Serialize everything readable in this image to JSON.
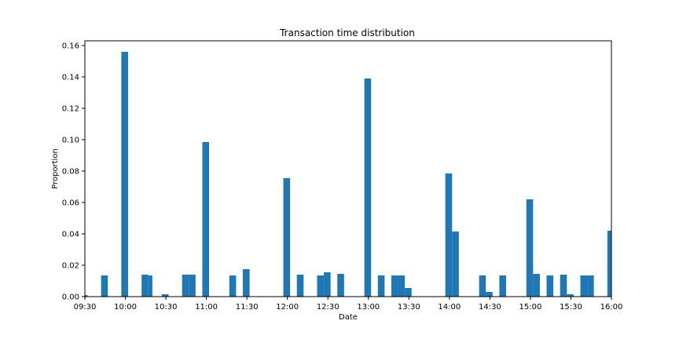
{
  "chart_data": {
    "type": "bar",
    "title": "Transaction time distribution",
    "xlabel": "Date",
    "ylabel": "Proportion",
    "x_range": [
      "09:30",
      "16:00"
    ],
    "xlim": [
      "09:30",
      "16:00"
    ],
    "ylim": [
      0,
      0.163
    ],
    "x_ticks": [
      "09:30",
      "10:00",
      "10:30",
      "11:00",
      "11:30",
      "12:00",
      "12:30",
      "13:00",
      "13:30",
      "14:00",
      "14:30",
      "15:00",
      "15:30",
      "16:00"
    ],
    "y_ticks": [
      "0.00",
      "0.02",
      "0.04",
      "0.06",
      "0.08",
      "0.10",
      "0.12",
      "0.14",
      "0.16"
    ],
    "bar_color": "#1f77b4",
    "bin_minutes": 5,
    "grid": false,
    "bars": [
      {
        "start": "09:30",
        "end": "09:32",
        "value": 0.001
      },
      {
        "start": "09:42",
        "end": "09:47",
        "value": 0.0135
      },
      {
        "start": "09:57",
        "end": "10:02",
        "value": 0.156
      },
      {
        "start": "10:12",
        "end": "10:17",
        "value": 0.014
      },
      {
        "start": "10:17",
        "end": "10:20",
        "value": 0.0135
      },
      {
        "start": "10:27",
        "end": "10:32",
        "value": 0.0015
      },
      {
        "start": "10:42",
        "end": "10:47",
        "value": 0.014
      },
      {
        "start": "10:47",
        "end": "10:52",
        "value": 0.014
      },
      {
        "start": "10:57",
        "end": "11:02",
        "value": 0.0985
      },
      {
        "start": "11:17",
        "end": "11:22",
        "value": 0.0135
      },
      {
        "start": "11:27",
        "end": "11:32",
        "value": 0.0175
      },
      {
        "start": "11:57",
        "end": "12:02",
        "value": 0.0755
      },
      {
        "start": "12:07",
        "end": "12:12",
        "value": 0.014
      },
      {
        "start": "12:22",
        "end": "12:27",
        "value": 0.0135
      },
      {
        "start": "12:27",
        "end": "12:32",
        "value": 0.0155
      },
      {
        "start": "12:37",
        "end": "12:42",
        "value": 0.0145
      },
      {
        "start": "12:57",
        "end": "13:02",
        "value": 0.139
      },
      {
        "start": "13:07",
        "end": "13:12",
        "value": 0.0135
      },
      {
        "start": "13:17",
        "end": "13:22",
        "value": 0.0135
      },
      {
        "start": "13:22",
        "end": "13:27",
        "value": 0.0135
      },
      {
        "start": "13:27",
        "end": "13:32",
        "value": 0.0055
      },
      {
        "start": "13:57",
        "end": "14:02",
        "value": 0.0785
      },
      {
        "start": "14:02",
        "end": "14:07",
        "value": 0.0415
      },
      {
        "start": "14:22",
        "end": "14:27",
        "value": 0.0135
      },
      {
        "start": "14:27",
        "end": "14:32",
        "value": 0.003
      },
      {
        "start": "14:37",
        "end": "14:42",
        "value": 0.0135
      },
      {
        "start": "14:57",
        "end": "15:02",
        "value": 0.062
      },
      {
        "start": "15:02",
        "end": "15:07",
        "value": 0.0145
      },
      {
        "start": "15:12",
        "end": "15:17",
        "value": 0.0135
      },
      {
        "start": "15:22",
        "end": "15:27",
        "value": 0.014
      },
      {
        "start": "15:27",
        "end": "15:32",
        "value": 0.0015
      },
      {
        "start": "15:37",
        "end": "15:42",
        "value": 0.0135
      },
      {
        "start": "15:42",
        "end": "15:47",
        "value": 0.0135
      },
      {
        "start": "15:57",
        "end": "16:00",
        "value": 0.042
      }
    ]
  }
}
